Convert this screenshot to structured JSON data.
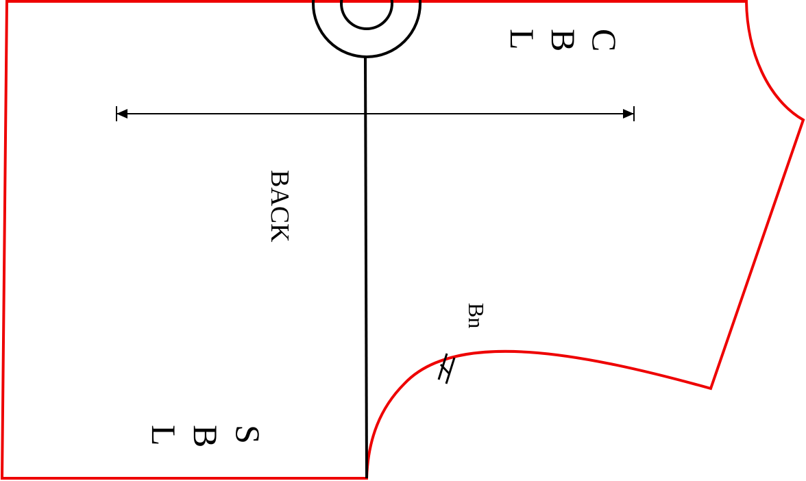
{
  "pattern": {
    "piece_name": "BACK",
    "center_back_label": [
      "C",
      "B",
      "L"
    ],
    "side_back_label": [
      "S",
      "B",
      "L"
    ],
    "notch_label": "Bn"
  },
  "colors": {
    "outline": "#ee0000",
    "line": "#000000",
    "background": "#ffffff"
  }
}
